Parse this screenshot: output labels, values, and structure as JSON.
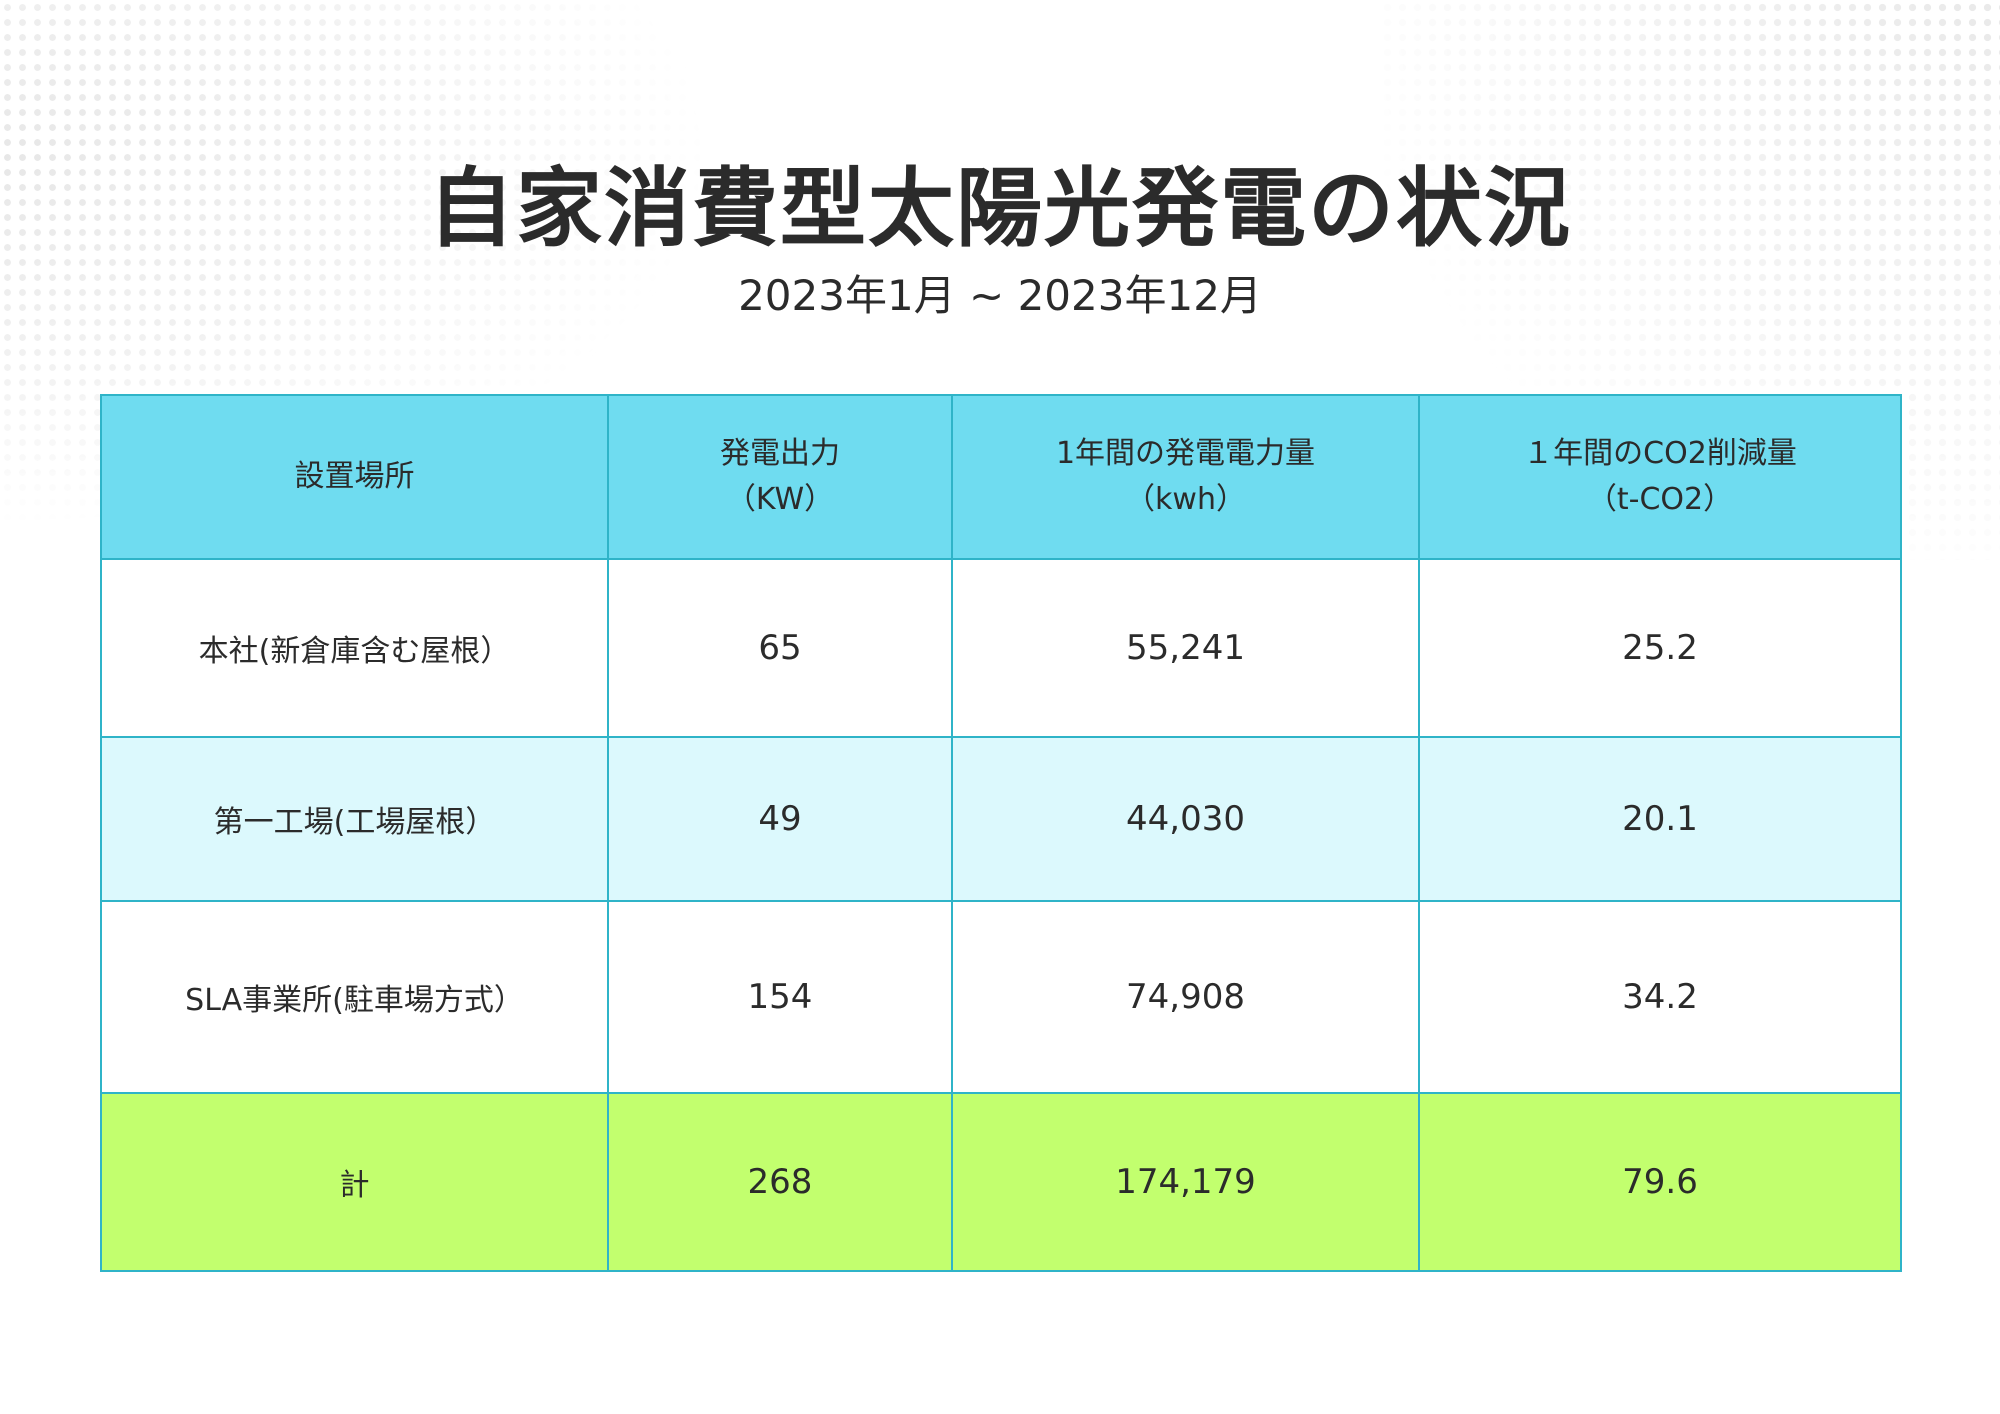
{
  "page": {
    "title": "自家消費型太陽光発電の状況",
    "subtitle": "2023年1月 ~ 2023年12月"
  },
  "table": {
    "headers": [
      {
        "label": "設置場所",
        "unit": ""
      },
      {
        "label": "発電出力",
        "unit": "（KW）"
      },
      {
        "label": "1年間の発電電力量",
        "unit": "（kwh）"
      },
      {
        "label": "１年間のCO2削減量",
        "unit": "（t-CO2）"
      }
    ],
    "rows": [
      {
        "location": "本社(新倉庫含む屋根）",
        "output_kw": "65",
        "annual_kwh": "55,241",
        "co2_reduction": "25.2"
      },
      {
        "location": "第一工場(工場屋根）",
        "output_kw": "49",
        "annual_kwh": "44,030",
        "co2_reduction": "20.1"
      },
      {
        "location": "SLA事業所(駐車場方式）",
        "output_kw": "154",
        "annual_kwh": "74,908",
        "co2_reduction": "34.2"
      }
    ],
    "total": {
      "label": "計",
      "output_kw": "268",
      "annual_kwh": "174,179",
      "co2_reduction": "79.6"
    }
  },
  "colors": {
    "header_bg": "#6fdcf0",
    "row_alt_bg": "#dcf9fd",
    "total_bg": "#c2ff6e",
    "border": "#2fb4c8",
    "text": "#2b2b2b"
  }
}
